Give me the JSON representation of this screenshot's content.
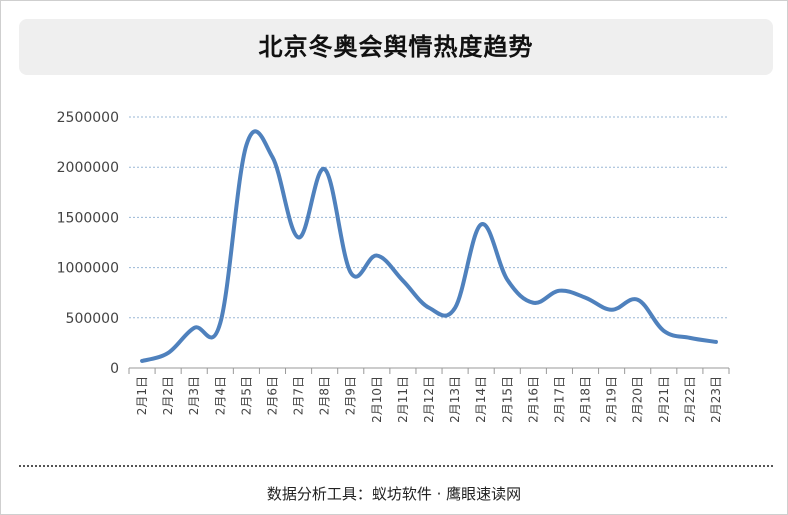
{
  "title": "北京冬奥会舆情热度趋势",
  "footer": "数据分析工具：蚁坊软件 · 鹰眼速读网",
  "chart_data": {
    "type": "line",
    "title": "北京冬奥会舆情热度趋势",
    "xlabel": "",
    "ylabel": "",
    "ylim": [
      0,
      2500000
    ],
    "yticks": [
      0,
      500000,
      1000000,
      1500000,
      2000000,
      2500000
    ],
    "grid": true,
    "legend": "none",
    "categories": [
      "2月1日",
      "2月2日",
      "2月3日",
      "2月4日",
      "2月5日",
      "2月6日",
      "2月7日",
      "2月8日",
      "2月9日",
      "2月10日",
      "2月11日",
      "2月12日",
      "2月13日",
      "2月14日",
      "2月15日",
      "2月16日",
      "2月17日",
      "2月18日",
      "2月19日",
      "2月20日",
      "2月21日",
      "2月22日",
      "2月23日"
    ],
    "series": [
      {
        "color": "#4f81bd",
        "values": [
          70000,
          150000,
          400000,
          450000,
          2220000,
          2100000,
          1300000,
          1980000,
          950000,
          1120000,
          870000,
          600000,
          600000,
          1430000,
          880000,
          650000,
          770000,
          700000,
          580000,
          680000,
          370000,
          300000,
          260000
        ]
      }
    ]
  }
}
